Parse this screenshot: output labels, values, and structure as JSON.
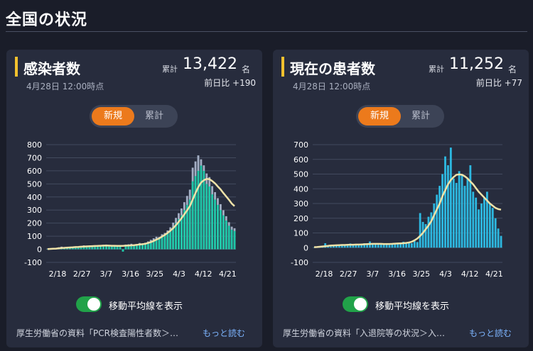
{
  "page": {
    "title": "全国の状況"
  },
  "cards": [
    {
      "title": "感染者数",
      "date": "4月28日 12:00時点",
      "total_label": "累計",
      "total_value": "13,422",
      "total_unit": "名",
      "diff_label": "前日比",
      "diff_value": "+190",
      "tabs": [
        "新規",
        "累計"
      ],
      "toggle_label": "移動平均線を表示",
      "source": "厚生労働省の資料「PCR検査陽性者数＞…",
      "more": "もっと読む"
    },
    {
      "title": "現在の患者数",
      "date": "4月28日 12:00時点",
      "total_label": "累計",
      "total_value": "11,252",
      "total_unit": "名",
      "diff_label": "前日比",
      "diff_value": "+77",
      "tabs": [
        "新規",
        "累計"
      ],
      "toggle_label": "移動平均線を表示",
      "source": "厚生労働省の資料「入退院等の状況＞入…",
      "more": "もっと読む"
    }
  ],
  "colors": {
    "accent": "#ec7a1c",
    "teal": "#1fc7a8",
    "gray_bar": "#a3aec4",
    "blue_bar": "#2db8e0",
    "avg_line": "#efe2a8",
    "toggle_on": "#21a249",
    "title_bar": "#f2c12e"
  },
  "chart_data": [
    {
      "type": "bar",
      "x_tick_labels": [
        "2/18",
        "2/27",
        "3/7",
        "3/16",
        "3/25",
        "4/3",
        "4/12",
        "4/21"
      ],
      "y_ticks": [
        -100,
        0,
        100,
        200,
        300,
        400,
        500,
        600,
        700,
        800
      ],
      "ylim": [
        -100,
        800
      ],
      "series": [
        {
          "values": [
            2,
            3,
            4,
            5,
            3,
            6,
            8,
            10,
            12,
            15,
            14,
            18,
            20,
            25,
            22,
            20,
            18,
            22,
            25,
            24,
            28,
            30,
            26,
            24,
            28,
            22,
            26,
            -18,
            30,
            32,
            35,
            28,
            34,
            40,
            38,
            42,
            50,
            60,
            70,
            80,
            78,
            96,
            104,
            120,
            140,
            170,
            200,
            230,
            260,
            300,
            340,
            380,
            520,
            560,
            600,
            640,
            600,
            500,
            480,
            420,
            380,
            340,
            300,
            260,
            220,
            180,
            150,
            140
          ]
        },
        {
          "values": [
            5,
            2,
            8,
            10,
            15,
            20,
            12,
            8,
            18,
            14,
            22,
            16,
            24,
            30,
            28,
            25,
            30,
            26,
            32,
            28,
            34,
            36,
            30,
            28,
            32,
            26,
            30,
            -12,
            36,
            38,
            42,
            34,
            40,
            48,
            45,
            50,
            60,
            72,
            84,
            96,
            94,
            115,
            125,
            144,
            168,
            204,
            240,
            276,
            312,
            360,
            408,
            456,
            624,
            672,
            718,
            688,
            642,
            580,
            552,
            483,
            437,
            391,
            345,
            299,
            253,
            207,
            173,
            161
          ]
        },
        {
          "values": [
            2,
            3,
            4,
            5,
            8,
            10,
            11,
            13,
            14,
            15,
            17,
            18,
            20,
            21,
            22,
            23,
            24,
            25,
            26,
            27,
            28,
            29,
            28,
            27,
            27,
            26,
            26,
            26,
            28,
            29,
            30,
            32,
            34,
            37,
            39,
            42,
            48,
            55,
            64,
            74,
            84,
            97,
            110,
            125,
            142,
            162,
            184,
            210,
            238,
            268,
            298,
            330,
            380,
            430,
            476,
            510,
            528,
            538,
            536,
            522,
            504,
            480,
            458,
            430,
            404,
            378,
            350,
            330
          ]
        }
      ]
    },
    {
      "type": "bar",
      "x_tick_labels": [
        "2/18",
        "2/27",
        "3/7",
        "3/16",
        "3/25",
        "4/3",
        "4/12",
        "4/21"
      ],
      "y_ticks": [
        -100,
        0,
        100,
        200,
        300,
        400,
        500,
        600,
        700
      ],
      "ylim": [
        -100,
        700
      ],
      "series": [
        {
          "values": [
            2,
            5,
            8,
            12,
            30,
            10,
            8,
            14,
            12,
            18,
            20,
            16,
            22,
            28,
            20,
            18,
            24,
            22,
            30,
            26,
            42,
            28,
            24,
            20,
            26,
            22,
            30,
            18,
            28,
            24,
            30,
            26,
            40,
            28,
            34,
            30,
            44,
            38,
            235,
            175,
            160,
            210,
            240,
            300,
            360,
            420,
            500,
            620,
            560,
            680,
            470,
            440,
            520,
            500,
            420,
            470,
            560,
            380,
            340,
            260,
            300,
            340,
            380,
            300,
            270,
            200,
            130,
            80
          ]
        },
        {
          "values": [
            3,
            4,
            6,
            8,
            10,
            12,
            14,
            15,
            16,
            17,
            18,
            18,
            19,
            20,
            20,
            21,
            21,
            22,
            23,
            24,
            25,
            26,
            26,
            26,
            26,
            25,
            25,
            25,
            26,
            27,
            28,
            29,
            30,
            32,
            35,
            40,
            50,
            62,
            80,
            100,
            125,
            150,
            180,
            220,
            260,
            300,
            350,
            390,
            430,
            460,
            480,
            495,
            498,
            495,
            485,
            470,
            450,
            430,
            405,
            380,
            360,
            340,
            320,
            300,
            285,
            270,
            262,
            258
          ]
        }
      ]
    }
  ]
}
